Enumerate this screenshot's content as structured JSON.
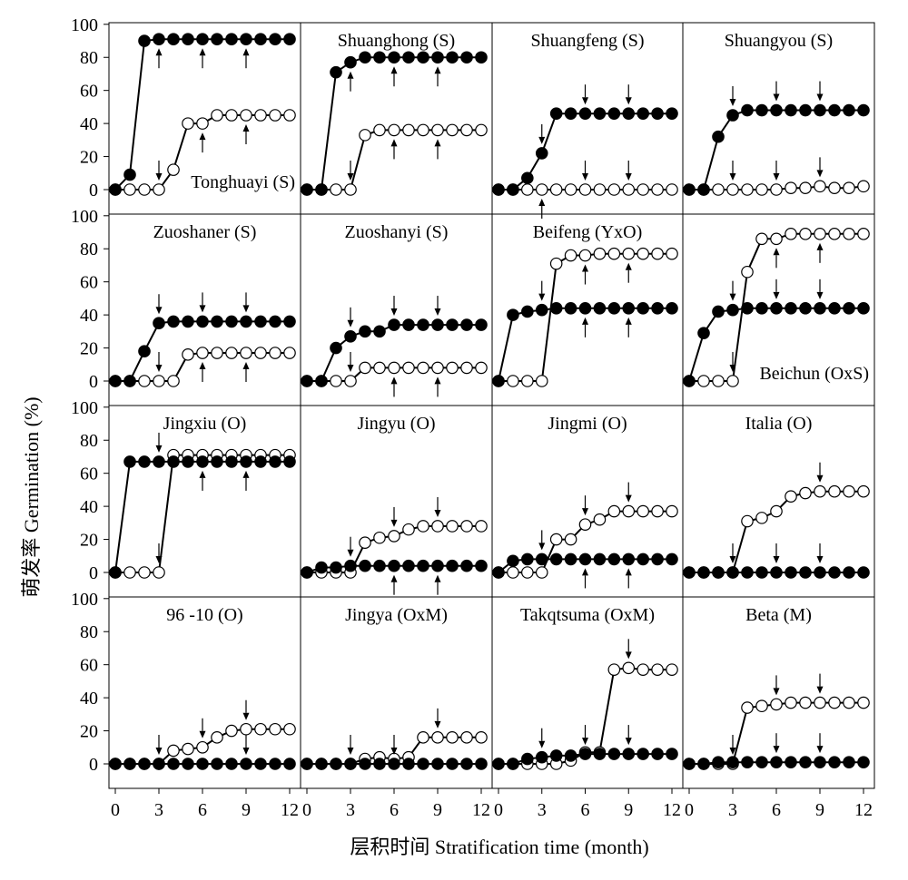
{
  "chart_data": {
    "type": "line",
    "ylabel": "萌发率 Germination (%)",
    "xlabel": "层积时间 Stratification time (month)",
    "xlim": [
      0,
      12
    ],
    "ylim": [
      0,
      100
    ],
    "xticks": [
      0,
      3,
      6,
      9,
      12
    ],
    "yticks": [
      0,
      20,
      40,
      60,
      80,
      100
    ],
    "x": [
      0,
      1,
      2,
      3,
      4,
      5,
      6,
      7,
      8,
      9,
      10,
      11,
      12
    ],
    "legend": [],
    "panels": [
      {
        "title": "Tonghuayi (S)",
        "title_pos": "bottom-right",
        "filled": [
          0,
          9,
          90,
          91,
          91,
          91,
          91,
          91,
          91,
          91,
          91,
          91,
          91
        ],
        "open": [
          0,
          0,
          0,
          0,
          12,
          40,
          40,
          45,
          45,
          45,
          45,
          45,
          45
        ],
        "arrows": [
          {
            "x": 3,
            "series": "filled",
            "dir": "up"
          },
          {
            "x": 6,
            "series": "filled",
            "dir": "up"
          },
          {
            "x": 9,
            "series": "filled",
            "dir": "up"
          },
          {
            "x": 3,
            "series": "open",
            "dir": "down"
          },
          {
            "x": 6,
            "series": "open",
            "dir": "up"
          },
          {
            "x": 9,
            "series": "open",
            "dir": "up"
          }
        ]
      },
      {
        "title": "Shuanghong (S)",
        "title_pos": "top",
        "filled": [
          0,
          0,
          71,
          77,
          80,
          80,
          80,
          80,
          80,
          80,
          80,
          80,
          80
        ],
        "open": [
          0,
          0,
          0,
          0,
          33,
          36,
          36,
          36,
          36,
          36,
          36,
          36,
          36
        ],
        "arrows": [
          {
            "x": 3,
            "series": "filled",
            "dir": "up"
          },
          {
            "x": 6,
            "series": "filled",
            "dir": "up"
          },
          {
            "x": 9,
            "series": "filled",
            "dir": "up"
          },
          {
            "x": 3,
            "series": "open",
            "dir": "down"
          },
          {
            "x": 6,
            "series": "open",
            "dir": "up"
          },
          {
            "x": 9,
            "series": "open",
            "dir": "up"
          }
        ]
      },
      {
        "title": "Shuangfeng (S)",
        "title_pos": "top",
        "filled": [
          0,
          0,
          7,
          22,
          46,
          46,
          46,
          46,
          46,
          46,
          46,
          46,
          46
        ],
        "open": [
          0,
          0,
          0,
          0,
          0,
          0,
          0,
          0,
          0,
          0,
          0,
          0,
          0
        ],
        "arrows": [
          {
            "x": 3,
            "series": "filled",
            "dir": "down"
          },
          {
            "x": 6,
            "series": "filled",
            "dir": "down"
          },
          {
            "x": 9,
            "series": "filled",
            "dir": "down"
          },
          {
            "x": 3,
            "series": "open",
            "dir": "up"
          },
          {
            "x": 6,
            "series": "open",
            "dir": "down"
          },
          {
            "x": 9,
            "series": "open",
            "dir": "down"
          }
        ]
      },
      {
        "title": "Shuangyou (S)",
        "title_pos": "top",
        "filled": [
          0,
          0,
          32,
          45,
          48,
          48,
          48,
          48,
          48,
          48,
          48,
          48,
          48
        ],
        "open": [
          0,
          0,
          0,
          0,
          0,
          0,
          0,
          1,
          1,
          2,
          1,
          1,
          2
        ],
        "arrows": [
          {
            "x": 3,
            "series": "filled",
            "dir": "down"
          },
          {
            "x": 6,
            "series": "filled",
            "dir": "down"
          },
          {
            "x": 9,
            "series": "filled",
            "dir": "down"
          },
          {
            "x": 3,
            "series": "open",
            "dir": "down"
          },
          {
            "x": 6,
            "series": "open",
            "dir": "down"
          },
          {
            "x": 9,
            "series": "open",
            "dir": "down"
          }
        ]
      },
      {
        "title": "Zuoshaner (S)",
        "title_pos": "top",
        "filled": [
          0,
          0,
          18,
          35,
          36,
          36,
          36,
          36,
          36,
          36,
          36,
          36,
          36
        ],
        "open": [
          0,
          0,
          0,
          0,
          0,
          16,
          17,
          17,
          17,
          17,
          17,
          17,
          17
        ],
        "arrows": [
          {
            "x": 3,
            "series": "filled",
            "dir": "down"
          },
          {
            "x": 6,
            "series": "filled",
            "dir": "down"
          },
          {
            "x": 9,
            "series": "filled",
            "dir": "down"
          },
          {
            "x": 3,
            "series": "open",
            "dir": "down"
          },
          {
            "x": 6,
            "series": "open",
            "dir": "up"
          },
          {
            "x": 9,
            "series": "open",
            "dir": "up"
          }
        ]
      },
      {
        "title": "Zuoshanyi (S)",
        "title_pos": "top",
        "filled": [
          0,
          0,
          20,
          27,
          30,
          30,
          34,
          34,
          34,
          34,
          34,
          34,
          34
        ],
        "open": [
          0,
          0,
          0,
          0,
          8,
          8,
          8,
          8,
          8,
          8,
          8,
          8,
          8
        ],
        "arrows": [
          {
            "x": 3,
            "series": "filled",
            "dir": "down"
          },
          {
            "x": 6,
            "series": "filled",
            "dir": "down"
          },
          {
            "x": 9,
            "series": "filled",
            "dir": "down"
          },
          {
            "x": 3,
            "series": "open",
            "dir": "down"
          },
          {
            "x": 6,
            "series": "open",
            "dir": "up"
          },
          {
            "x": 9,
            "series": "open",
            "dir": "up"
          }
        ]
      },
      {
        "title": "Beifeng (YxO)",
        "title_pos": "top",
        "filled": [
          0,
          40,
          42,
          43,
          44,
          44,
          44,
          44,
          44,
          44,
          44,
          44,
          44
        ],
        "open": [
          0,
          0,
          0,
          0,
          71,
          76,
          76,
          77,
          77,
          77,
          77,
          77,
          77
        ],
        "arrows": [
          {
            "x": 3,
            "series": "filled",
            "dir": "down"
          },
          {
            "x": 6,
            "series": "filled",
            "dir": "up"
          },
          {
            "x": 9,
            "series": "filled",
            "dir": "up"
          },
          {
            "x": 6,
            "series": "open",
            "dir": "up"
          },
          {
            "x": 9,
            "series": "open",
            "dir": "up"
          }
        ]
      },
      {
        "title": "Beichun (OxS)",
        "title_pos": "bottom-right",
        "filled": [
          0,
          29,
          42,
          43,
          44,
          44,
          44,
          44,
          44,
          44,
          44,
          44,
          44
        ],
        "open": [
          0,
          0,
          0,
          0,
          66,
          86,
          86,
          89,
          89,
          89,
          89,
          89,
          89
        ],
        "arrows": [
          {
            "x": 3,
            "series": "filled",
            "dir": "down"
          },
          {
            "x": 6,
            "series": "filled",
            "dir": "down"
          },
          {
            "x": 9,
            "series": "filled",
            "dir": "down"
          },
          {
            "x": 3,
            "series": "open",
            "dir": "down"
          },
          {
            "x": 6,
            "series": "open",
            "dir": "up"
          },
          {
            "x": 9,
            "series": "open",
            "dir": "up"
          }
        ]
      },
      {
        "title": "Jingxiu (O)",
        "title_pos": "top",
        "filled": [
          0,
          67,
          67,
          67,
          67,
          67,
          67,
          67,
          67,
          67,
          67,
          67,
          67
        ],
        "open": [
          0,
          0,
          0,
          0,
          71,
          71,
          71,
          71,
          71,
          71,
          71,
          71,
          71
        ],
        "arrows": [
          {
            "x": 3,
            "series": "filled",
            "dir": "down"
          },
          {
            "x": 3,
            "series": "open",
            "dir": "down"
          },
          {
            "x": 6,
            "series": "filled",
            "dir": "up"
          },
          {
            "x": 9,
            "series": "filled",
            "dir": "up"
          }
        ]
      },
      {
        "title": "Jingyu (O)",
        "title_pos": "top",
        "filled": [
          0,
          3,
          3,
          4,
          4,
          4,
          4,
          4,
          4,
          4,
          4,
          4,
          4
        ],
        "open": [
          0,
          0,
          0,
          0,
          18,
          21,
          22,
          26,
          28,
          28,
          28,
          28,
          28
        ],
        "arrows": [
          {
            "x": 3,
            "series": "filled",
            "dir": "down"
          },
          {
            "x": 6,
            "series": "open",
            "dir": "down"
          },
          {
            "x": 9,
            "series": "open",
            "dir": "down"
          },
          {
            "x": 6,
            "series": "filled",
            "dir": "up"
          },
          {
            "x": 9,
            "series": "filled",
            "dir": "up"
          }
        ]
      },
      {
        "title": "Jingmi (O)",
        "title_pos": "top",
        "filled": [
          0,
          7,
          8,
          8,
          8,
          8,
          8,
          8,
          8,
          8,
          8,
          8,
          8
        ],
        "open": [
          0,
          0,
          0,
          0,
          20,
          20,
          29,
          32,
          37,
          37,
          37,
          37,
          37
        ],
        "arrows": [
          {
            "x": 3,
            "series": "filled",
            "dir": "down"
          },
          {
            "x": 6,
            "series": "open",
            "dir": "down"
          },
          {
            "x": 9,
            "series": "open",
            "dir": "down"
          },
          {
            "x": 6,
            "series": "filled",
            "dir": "up"
          },
          {
            "x": 9,
            "series": "filled",
            "dir": "up"
          }
        ]
      },
      {
        "title": "Italia (O)",
        "title_pos": "top",
        "filled": [
          0,
          0,
          0,
          0,
          0,
          0,
          0,
          0,
          0,
          0,
          0,
          0,
          0
        ],
        "open": [
          0,
          0,
          0,
          0,
          31,
          33,
          37,
          46,
          48,
          49,
          49,
          49,
          49
        ],
        "arrows": [
          {
            "x": 3,
            "series": "open",
            "dir": "down"
          },
          {
            "x": 9,
            "series": "open",
            "dir": "down"
          },
          {
            "x": 6,
            "series": "filled",
            "dir": "down"
          },
          {
            "x": 9,
            "series": "filled",
            "dir": "down"
          }
        ]
      },
      {
        "title": "96 -10 (O)",
        "title_pos": "top",
        "filled": [
          0,
          0,
          0,
          0,
          0,
          0,
          0,
          0,
          0,
          0,
          0,
          0,
          0
        ],
        "open": [
          0,
          0,
          0,
          0,
          8,
          9,
          10,
          16,
          20,
          21,
          21,
          21,
          21
        ],
        "arrows": [
          {
            "x": 3,
            "series": "open",
            "dir": "down"
          },
          {
            "x": 6,
            "series": "open",
            "dir": "down"
          },
          {
            "x": 9,
            "series": "open",
            "dir": "down"
          },
          {
            "x": 9,
            "series": "filled",
            "dir": "down"
          }
        ]
      },
      {
        "title": "Jingya (OxM)",
        "title_pos": "top",
        "filled": [
          0,
          0,
          0,
          0,
          0,
          0,
          0,
          0,
          0,
          0,
          0,
          0,
          0
        ],
        "open": [
          0,
          0,
          0,
          0,
          3,
          4,
          3,
          4,
          16,
          16,
          16,
          16,
          16
        ],
        "arrows": [
          {
            "x": 3,
            "series": "filled",
            "dir": "down"
          },
          {
            "x": 6,
            "series": "filled",
            "dir": "down"
          },
          {
            "x": 9,
            "series": "open",
            "dir": "down"
          }
        ]
      },
      {
        "title": "Takqtsuma (OxM)",
        "title_pos": "top",
        "filled": [
          0,
          0,
          3,
          4,
          5,
          5,
          6,
          6,
          6,
          6,
          6,
          6,
          6
        ],
        "open": [
          0,
          0,
          0,
          0,
          0,
          2,
          7,
          7,
          57,
          58,
          57,
          57,
          57
        ],
        "arrows": [
          {
            "x": 3,
            "series": "filled",
            "dir": "down"
          },
          {
            "x": 6,
            "series": "filled",
            "dir": "down"
          },
          {
            "x": 9,
            "series": "open",
            "dir": "down"
          },
          {
            "x": 9,
            "series": "filled",
            "dir": "down"
          }
        ]
      },
      {
        "title": "Beta (M)",
        "title_pos": "top",
        "filled": [
          0,
          0,
          1,
          1,
          1,
          1,
          1,
          1,
          1,
          1,
          1,
          1,
          1
        ],
        "open": [
          0,
          0,
          0,
          0,
          34,
          35,
          36,
          37,
          37,
          37,
          37,
          37,
          37
        ],
        "arrows": [
          {
            "x": 3,
            "series": "open",
            "dir": "down"
          },
          {
            "x": 6,
            "series": "open",
            "dir": "down"
          },
          {
            "x": 9,
            "series": "open",
            "dir": "down"
          },
          {
            "x": 6,
            "series": "filled",
            "dir": "down"
          },
          {
            "x": 9,
            "series": "filled",
            "dir": "down"
          }
        ]
      }
    ]
  }
}
